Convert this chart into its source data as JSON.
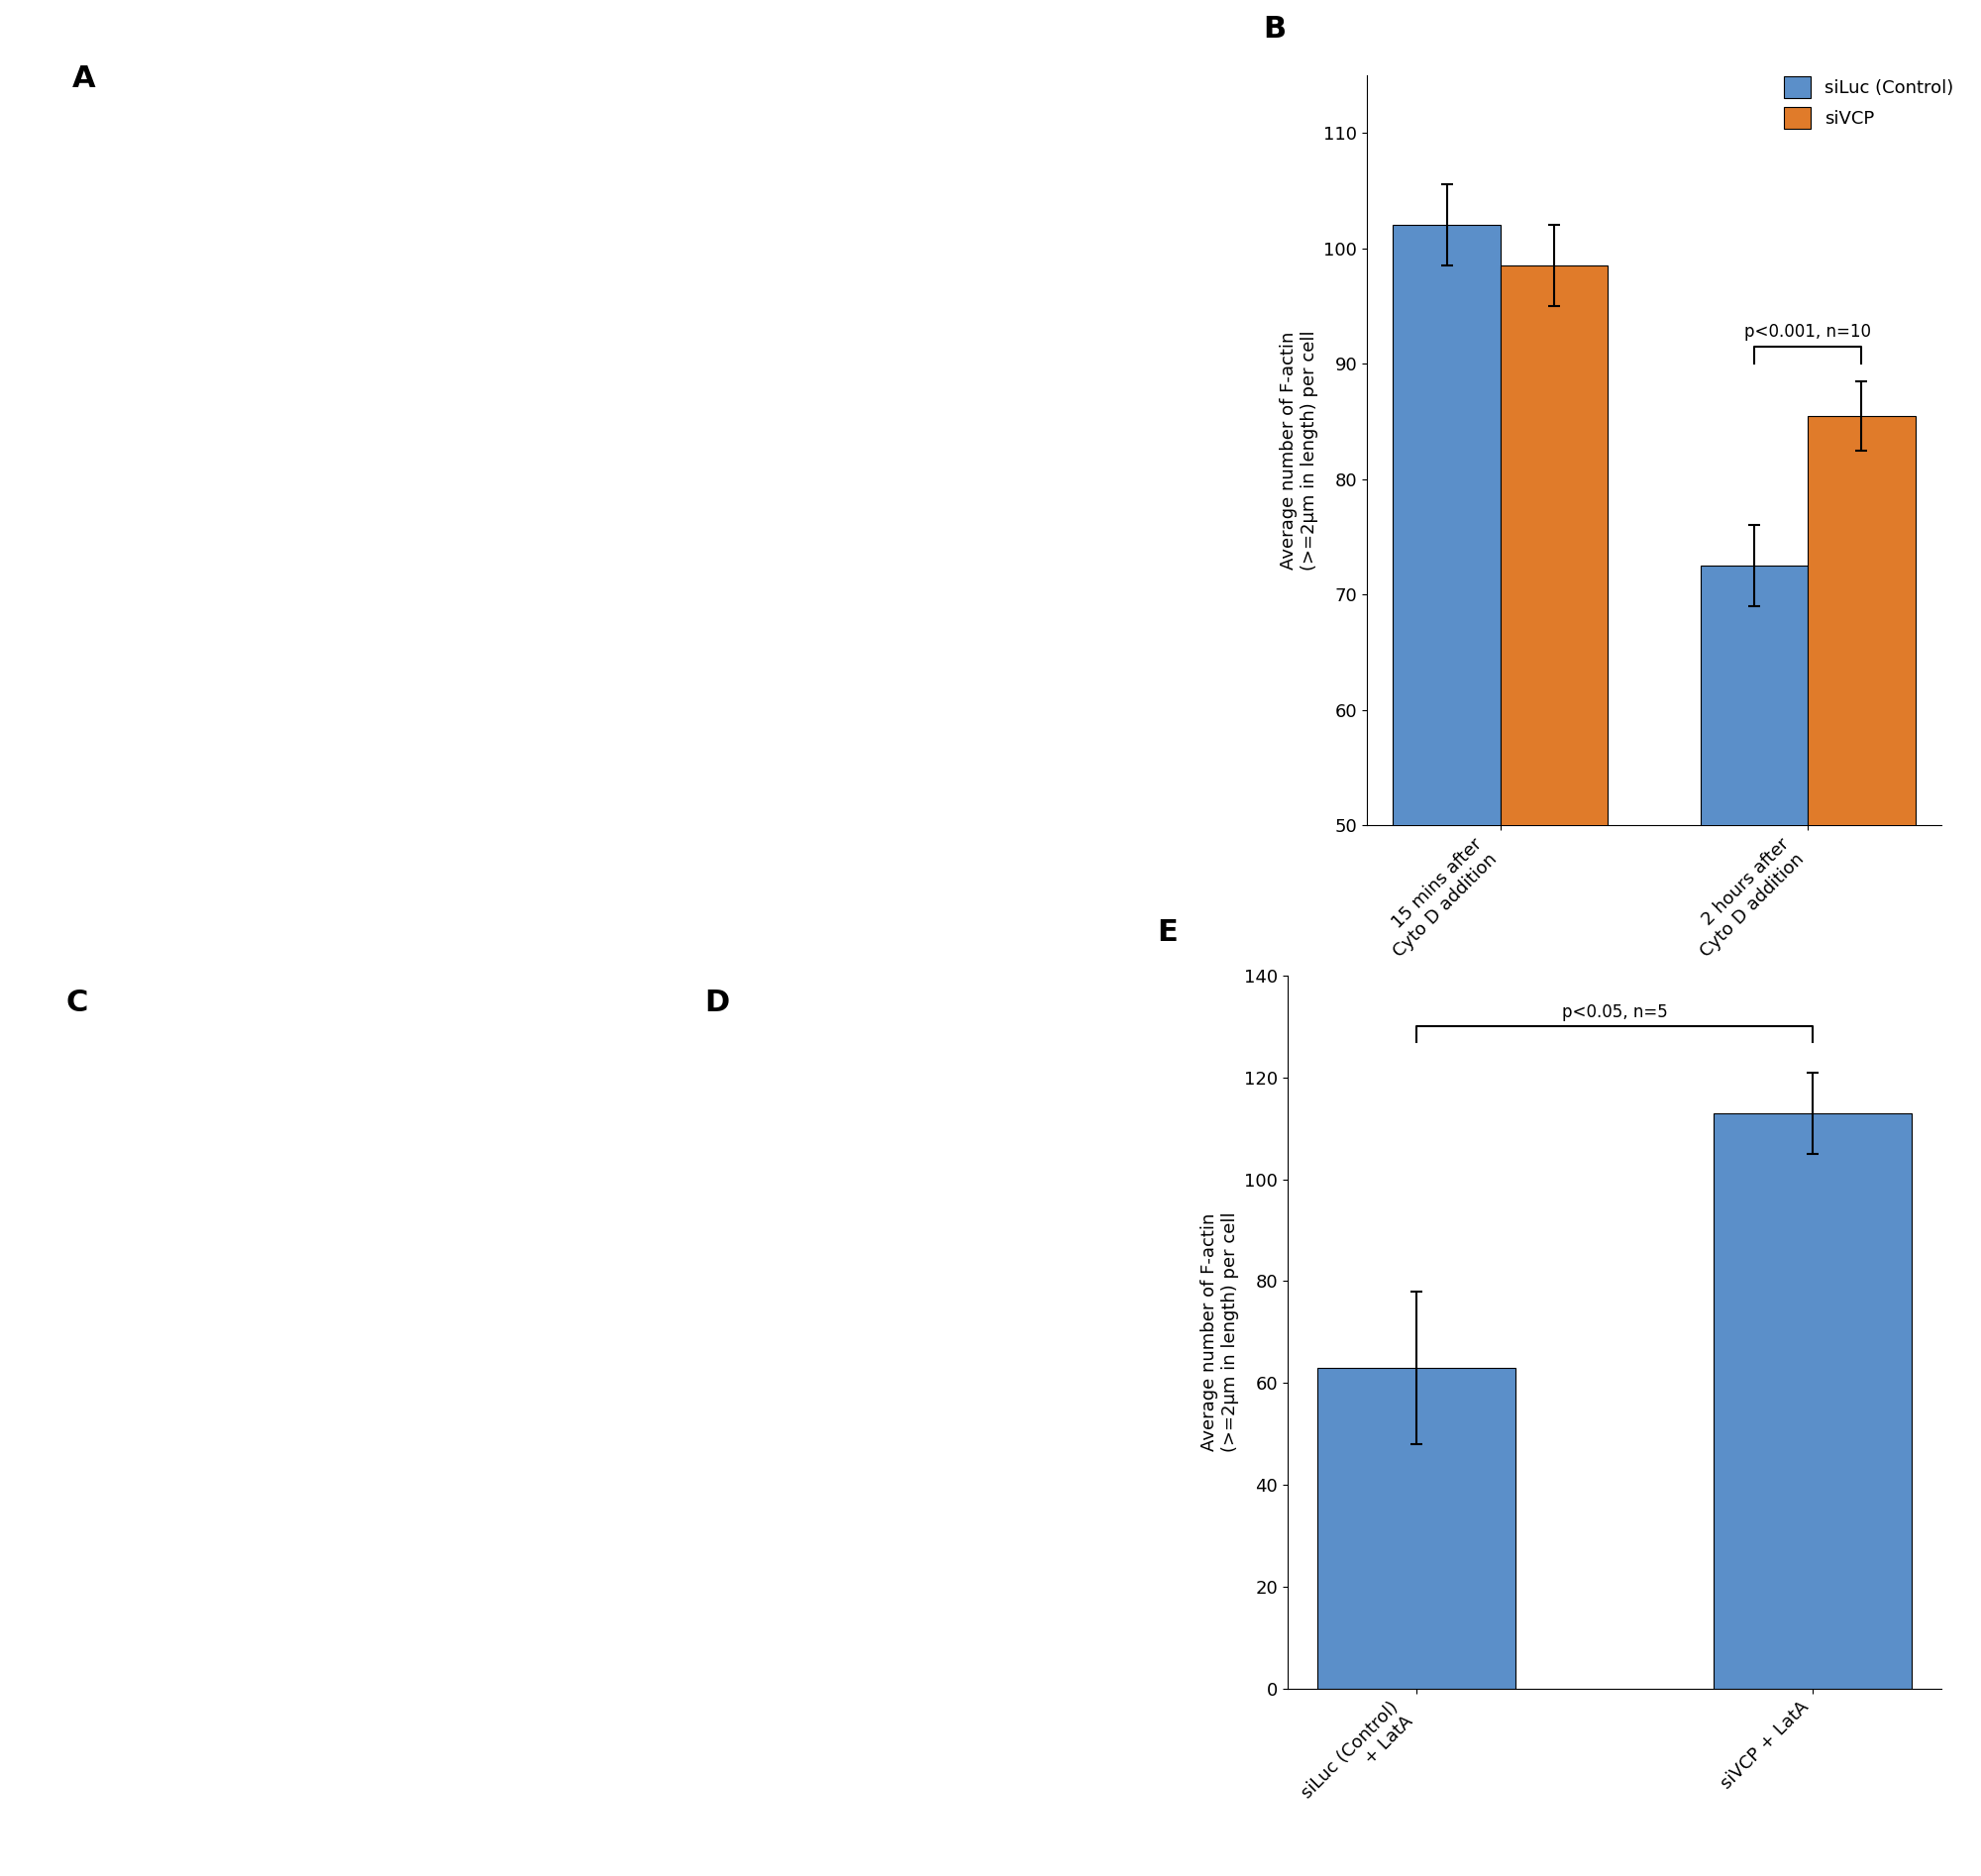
{
  "panel_B": {
    "categories": [
      "15 mins after\nCyto D addition",
      "2 hours after\nCyto D addition"
    ],
    "siluc_values": [
      102,
      72.5
    ],
    "sivcp_values": [
      98.5,
      85.5
    ],
    "siluc_errors": [
      3.5,
      3.5
    ],
    "sivcp_errors": [
      3.5,
      3.0
    ],
    "ylim": [
      50,
      115
    ],
    "yticks": [
      50,
      60,
      70,
      80,
      90,
      100,
      110
    ],
    "ylabel": "Average number of F-actin\n(>=2μm in length) per cell",
    "panel_label": "B",
    "siluc_color": "#5B8FC9",
    "sivcp_color": "#E07B2A",
    "legend_siluc": "siLuc (Control)",
    "legend_sivcp": "siVCP",
    "stat_text": "p<0.001, n=10",
    "bar_width": 0.35
  },
  "panel_E": {
    "categories": [
      "siLuc (Control)\n+ LatA",
      "siVCP + LatA"
    ],
    "values": [
      63,
      113
    ],
    "errors": [
      15,
      8
    ],
    "ylim": [
      0,
      140
    ],
    "yticks": [
      0,
      20,
      40,
      60,
      80,
      100,
      120,
      140
    ],
    "ylabel": "Average number of F-actin\n(>=2μm in length) per cell",
    "panel_label": "E",
    "bar_color": "#5B8FC9",
    "stat_text": "p<0.05, n=5",
    "bar_width": 0.5
  },
  "panel_labels": {
    "A": "A",
    "C": "C",
    "D": "D"
  },
  "figure": {
    "bg_color": "#ffffff",
    "placeholder_color": "#ffffff",
    "label_fontsize": 22,
    "tick_fontsize": 13,
    "ylabel_fontsize": 13,
    "legend_fontsize": 13,
    "stat_fontsize": 12
  }
}
